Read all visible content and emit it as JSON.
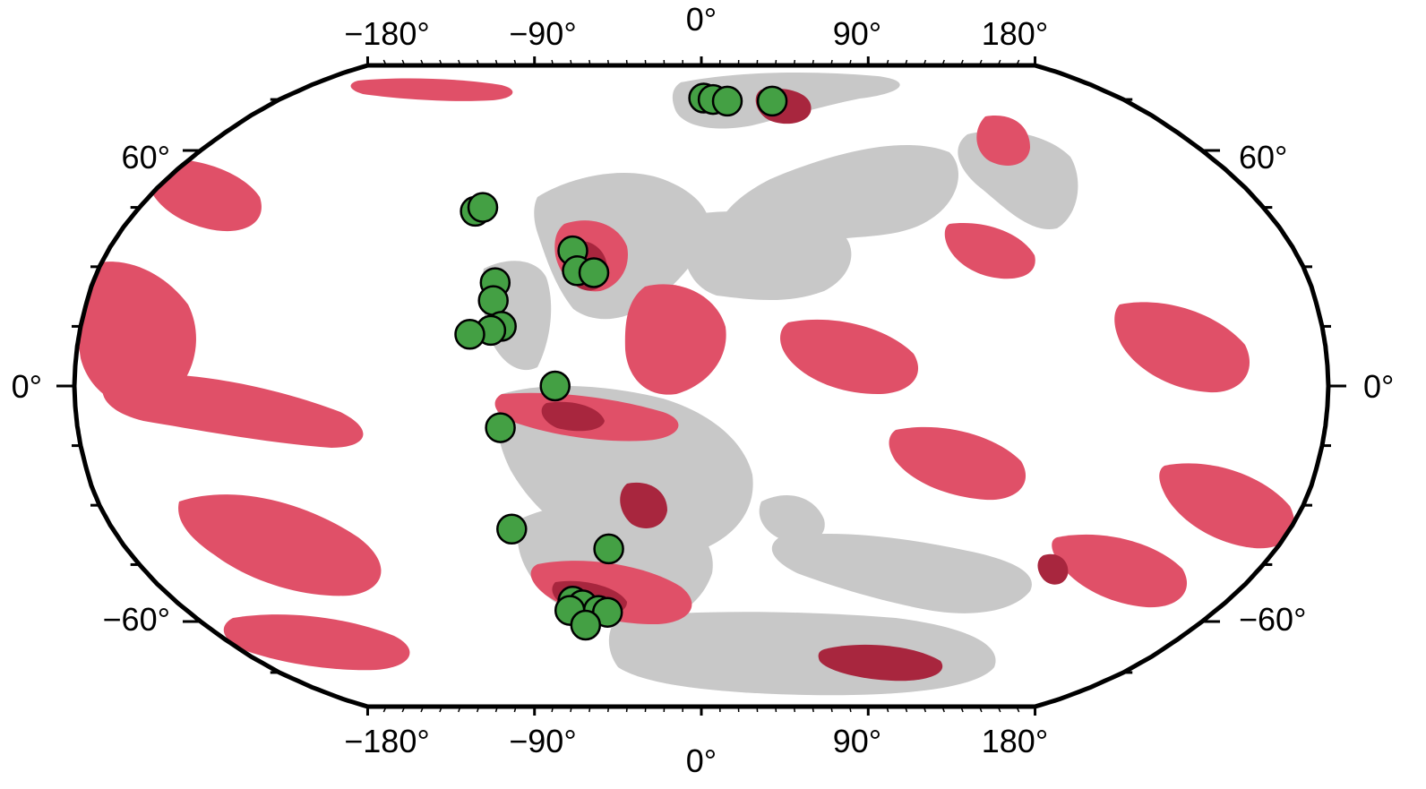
{
  "map": {
    "projection": "Robinson",
    "colors": {
      "land": "#c8c8c8",
      "anomaly": "#e05068",
      "anomaly_dark": "#a8263e",
      "points": "#44a044",
      "point_stroke": "#000000",
      "frame": "#000000"
    },
    "lon_ticks_top": [
      "−180°",
      "−90°",
      "0°",
      "90°",
      "180°"
    ],
    "lon_ticks_bottom": [
      "−180°",
      "−90°",
      "0°",
      "90°",
      "180°"
    ],
    "lat_ticks_left": [
      "60°",
      "0°",
      "−60°"
    ],
    "lat_ticks_right": [
      "60°",
      "0°",
      "−60°"
    ],
    "lon_tick_values": [
      -180,
      -90,
      0,
      90,
      180
    ],
    "lat_tick_values": [
      60,
      0,
      -60
    ],
    "sites": [
      {
        "lon": 1,
        "lat": 75.5
      },
      {
        "lon": 5,
        "lat": 75
      },
      {
        "lon": 11,
        "lat": 74.5
      },
      {
        "lon": 30,
        "lat": 74.5
      },
      {
        "lon": -72,
        "lat": 44
      },
      {
        "lon": -70,
        "lat": 45
      },
      {
        "lon": -39,
        "lat": 34
      },
      {
        "lon": -37,
        "lat": 29
      },
      {
        "lon": -32,
        "lat": 28.5
      },
      {
        "lon": -61,
        "lat": 26
      },
      {
        "lon": -61,
        "lat": 21.5
      },
      {
        "lon": -58,
        "lat": 15
      },
      {
        "lon": -61,
        "lat": 14
      },
      {
        "lon": -67,
        "lat": 13
      },
      {
        "lon": -42,
        "lat": 0
      },
      {
        "lon": -58,
        "lat": -10.5
      },
      {
        "lon": -58,
        "lat": -36
      },
      {
        "lon": -29,
        "lat": -41
      },
      {
        "lon": -44,
        "lat": -54.5
      },
      {
        "lon": -41,
        "lat": -55.5
      },
      {
        "lon": -46,
        "lat": -57
      },
      {
        "lon": -36,
        "lat": -57
      },
      {
        "lon": -33,
        "lat": -57.5
      },
      {
        "lon": -42,
        "lat": -61
      }
    ]
  }
}
